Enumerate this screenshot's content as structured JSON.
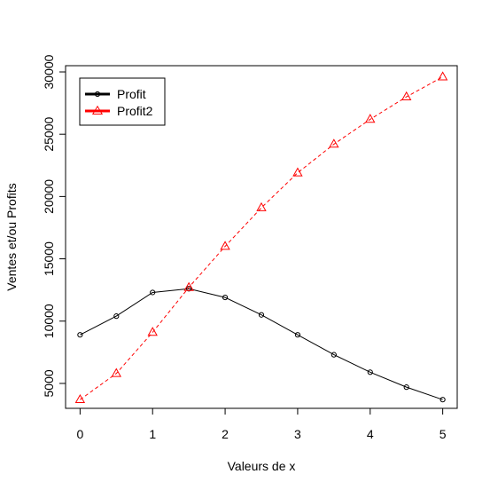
{
  "chart_data": {
    "type": "line",
    "title": "",
    "xlabel": "Valeurs de x",
    "ylabel": "Ventes et/ou Profits",
    "xlim": [
      -0.2,
      5.2
    ],
    "ylim": [
      3000,
      30500
    ],
    "x_ticks": [
      0,
      1,
      2,
      3,
      4,
      5
    ],
    "x_tick_labels": [
      "0",
      "1",
      "2",
      "3",
      "4",
      "5"
    ],
    "y_ticks": [
      5000,
      10000,
      15000,
      20000,
      25000,
      30000
    ],
    "y_tick_labels": [
      "5000",
      "10000",
      "15000",
      "20000",
      "25000",
      "30000"
    ],
    "grid": false,
    "legend_position": "top-left",
    "x": [
      0,
      0.5,
      1,
      1.5,
      2,
      2.5,
      3,
      3.5,
      4,
      4.5,
      5
    ],
    "series": [
      {
        "name": "Profit",
        "color": "#000000",
        "line_style": "solid",
        "marker": "circle",
        "values": [
          8900,
          10400,
          12300,
          12600,
          11900,
          10500,
          8900,
          7300,
          5900,
          4700,
          3700
        ]
      },
      {
        "name": "Profit2",
        "color": "#ff0000",
        "line_style": "dashed",
        "marker": "triangle",
        "values": [
          3700,
          5800,
          9100,
          12700,
          16000,
          19100,
          21900,
          24200,
          26200,
          28000,
          29600
        ]
      }
    ]
  }
}
